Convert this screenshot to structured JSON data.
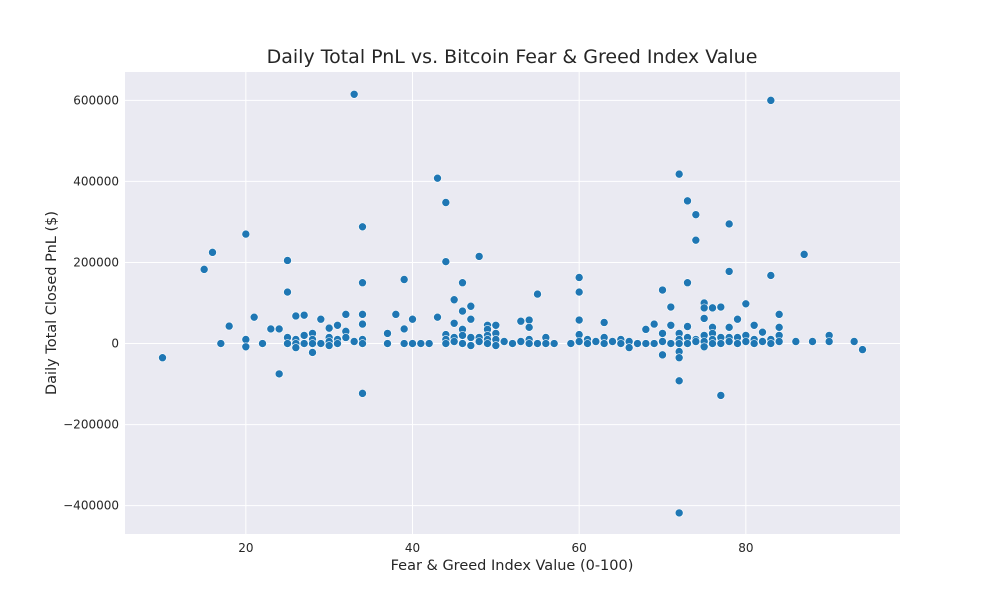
{
  "chart_data": {
    "type": "scatter",
    "title": "Daily Total PnL vs. Bitcoin Fear & Greed Index Value",
    "xlabel": "Fear & Greed Index Value (0-100)",
    "ylabel": "Daily Total Closed PnL ($)",
    "xlim": [
      5.5,
      98.5
    ],
    "ylim": [
      -470000,
      670000
    ],
    "xticks": [
      20,
      40,
      60,
      80
    ],
    "yticks": [
      -400000,
      -200000,
      0,
      200000,
      400000,
      600000
    ],
    "xtick_labels": [
      "20",
      "40",
      "60",
      "80"
    ],
    "ytick_labels": [
      "−400000",
      "−200000",
      "0",
      "200000",
      "400000",
      "600000"
    ],
    "grid": true,
    "colors": {
      "marker": "#1f77b4",
      "background": "#eaeaf2",
      "grid": "#ffffff"
    },
    "points": [
      [
        10,
        -35000
      ],
      [
        15,
        183000
      ],
      [
        16,
        225000
      ],
      [
        17,
        0
      ],
      [
        18,
        43000
      ],
      [
        20,
        270000
      ],
      [
        20,
        10000
      ],
      [
        20,
        -8000
      ],
      [
        21,
        65000
      ],
      [
        22,
        0
      ],
      [
        23,
        36000
      ],
      [
        24,
        36000
      ],
      [
        24,
        -75000
      ],
      [
        25,
        205000
      ],
      [
        25,
        127000
      ],
      [
        25,
        15000
      ],
      [
        25,
        0
      ],
      [
        26,
        68000
      ],
      [
        26,
        10000
      ],
      [
        26,
        0
      ],
      [
        26,
        -10000
      ],
      [
        27,
        70000
      ],
      [
        27,
        20000
      ],
      [
        27,
        0
      ],
      [
        28,
        25000
      ],
      [
        28,
        10000
      ],
      [
        28,
        0
      ],
      [
        28,
        -22000
      ],
      [
        29,
        60000
      ],
      [
        29,
        0
      ],
      [
        30,
        38000
      ],
      [
        30,
        15000
      ],
      [
        30,
        5000
      ],
      [
        30,
        -5000
      ],
      [
        31,
        45000
      ],
      [
        31,
        10000
      ],
      [
        31,
        0
      ],
      [
        32,
        72000
      ],
      [
        32,
        30000
      ],
      [
        32,
        15000
      ],
      [
        33,
        615000
      ],
      [
        33,
        5000
      ],
      [
        34,
        288000
      ],
      [
        34,
        150000
      ],
      [
        34,
        72000
      ],
      [
        34,
        48000
      ],
      [
        34,
        10000
      ],
      [
        34,
        0
      ],
      [
        34,
        -123000
      ],
      [
        37,
        25000
      ],
      [
        37,
        0
      ],
      [
        38,
        72000
      ],
      [
        39,
        158000
      ],
      [
        39,
        36000
      ],
      [
        39,
        0
      ],
      [
        40,
        60000
      ],
      [
        40,
        0
      ],
      [
        41,
        0
      ],
      [
        42,
        0
      ],
      [
        43,
        408000
      ],
      [
        43,
        65000
      ],
      [
        44,
        348000
      ],
      [
        44,
        202000
      ],
      [
        44,
        22000
      ],
      [
        44,
        10000
      ],
      [
        44,
        0
      ],
      [
        45,
        108000
      ],
      [
        45,
        50000
      ],
      [
        45,
        15000
      ],
      [
        45,
        5000
      ],
      [
        46,
        150000
      ],
      [
        46,
        80000
      ],
      [
        46,
        35000
      ],
      [
        46,
        20000
      ],
      [
        46,
        0
      ],
      [
        47,
        92000
      ],
      [
        47,
        60000
      ],
      [
        47,
        15000
      ],
      [
        47,
        -5000
      ],
      [
        48,
        215000
      ],
      [
        48,
        15000
      ],
      [
        48,
        5000
      ],
      [
        49,
        45000
      ],
      [
        49,
        35000
      ],
      [
        49,
        20000
      ],
      [
        49,
        10000
      ],
      [
        49,
        0
      ],
      [
        50,
        45000
      ],
      [
        50,
        25000
      ],
      [
        50,
        10000
      ],
      [
        50,
        -5000
      ],
      [
        51,
        5000
      ],
      [
        52,
        0
      ],
      [
        53,
        55000
      ],
      [
        53,
        5000
      ],
      [
        54,
        58000
      ],
      [
        54,
        40000
      ],
      [
        54,
        10000
      ],
      [
        54,
        0
      ],
      [
        55,
        122000
      ],
      [
        55,
        0
      ],
      [
        56,
        15000
      ],
      [
        56,
        0
      ],
      [
        57,
        0
      ],
      [
        59,
        0
      ],
      [
        60,
        163000
      ],
      [
        60,
        127000
      ],
      [
        60,
        58000
      ],
      [
        60,
        22000
      ],
      [
        60,
        5000
      ],
      [
        61,
        10000
      ],
      [
        61,
        0
      ],
      [
        62,
        5000
      ],
      [
        63,
        52000
      ],
      [
        63,
        15000
      ],
      [
        63,
        0
      ],
      [
        64,
        5000
      ],
      [
        65,
        10000
      ],
      [
        65,
        0
      ],
      [
        66,
        5000
      ],
      [
        66,
        -10000
      ],
      [
        67,
        0
      ],
      [
        68,
        35000
      ],
      [
        68,
        0
      ],
      [
        69,
        48000
      ],
      [
        69,
        0
      ],
      [
        70,
        132000
      ],
      [
        70,
        25000
      ],
      [
        70,
        5000
      ],
      [
        70,
        -28000
      ],
      [
        71,
        90000
      ],
      [
        71,
        45000
      ],
      [
        71,
        0
      ],
      [
        72,
        418000
      ],
      [
        72,
        25000
      ],
      [
        72,
        10000
      ],
      [
        72,
        0
      ],
      [
        72,
        -20000
      ],
      [
        72,
        -35000
      ],
      [
        72,
        -92000
      ],
      [
        72,
        -418000
      ],
      [
        73,
        352000
      ],
      [
        73,
        150000
      ],
      [
        73,
        42000
      ],
      [
        73,
        15000
      ],
      [
        73,
        0
      ],
      [
        74,
        318000
      ],
      [
        74,
        255000
      ],
      [
        74,
        10000
      ],
      [
        74,
        5000
      ],
      [
        75,
        100000
      ],
      [
        75,
        88000
      ],
      [
        75,
        62000
      ],
      [
        75,
        20000
      ],
      [
        75,
        5000
      ],
      [
        75,
        -8000
      ],
      [
        76,
        88000
      ],
      [
        76,
        40000
      ],
      [
        76,
        25000
      ],
      [
        76,
        10000
      ],
      [
        76,
        0
      ],
      [
        77,
        90000
      ],
      [
        77,
        15000
      ],
      [
        77,
        0
      ],
      [
        77,
        -128000
      ],
      [
        78,
        295000
      ],
      [
        78,
        178000
      ],
      [
        78,
        40000
      ],
      [
        78,
        15000
      ],
      [
        78,
        5000
      ],
      [
        79,
        60000
      ],
      [
        79,
        15000
      ],
      [
        79,
        0
      ],
      [
        80,
        98000
      ],
      [
        80,
        20000
      ],
      [
        80,
        5000
      ],
      [
        81,
        45000
      ],
      [
        81,
        10000
      ],
      [
        81,
        0
      ],
      [
        82,
        28000
      ],
      [
        82,
        5000
      ],
      [
        83,
        600000
      ],
      [
        83,
        168000
      ],
      [
        83,
        10000
      ],
      [
        83,
        0
      ],
      [
        84,
        72000
      ],
      [
        84,
        40000
      ],
      [
        84,
        20000
      ],
      [
        84,
        5000
      ],
      [
        86,
        5000
      ],
      [
        87,
        220000
      ],
      [
        88,
        5000
      ],
      [
        90,
        20000
      ],
      [
        90,
        5000
      ],
      [
        93,
        5000
      ],
      [
        94,
        -15000
      ]
    ]
  }
}
